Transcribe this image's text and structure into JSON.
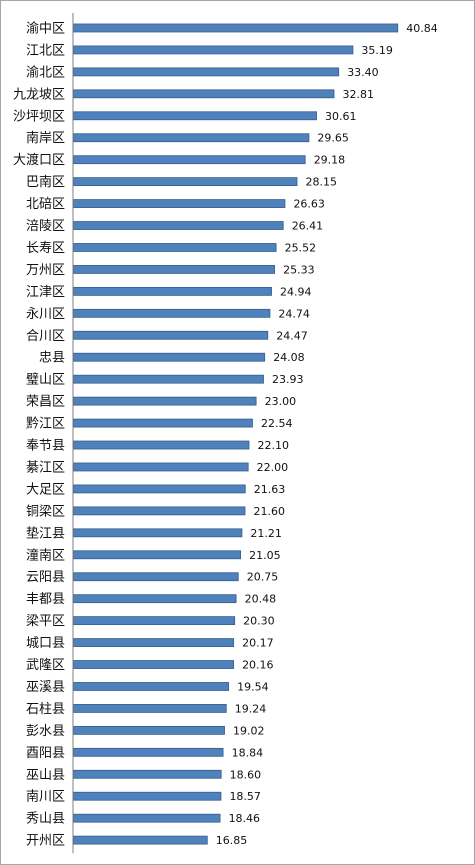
{
  "chart_data": {
    "type": "bar",
    "orientation": "horizontal",
    "title": "",
    "xlabel": "",
    "ylabel": "",
    "xlim": [
      0,
      50
    ],
    "grid": false,
    "legend": "none",
    "bar_color": "#4f81bd",
    "bar_edge_color": "#385d8a",
    "axis_color": "#7f7f7f",
    "categories": [
      "渝中区",
      "江北区",
      "渝北区",
      "九龙坡区",
      "沙坪坝区",
      "南岸区",
      "大渡口区",
      "巴南区",
      "北碚区",
      "涪陵区",
      "长寿区",
      "万州区",
      "江津区",
      "永川区",
      "合川区",
      "忠县",
      "璧山区",
      "荣昌区",
      "黔江区",
      "奉节县",
      "綦江区",
      "大足区",
      "铜梁区",
      "垫江县",
      "潼南区",
      "云阳县",
      "丰都县",
      "梁平区",
      "城口县",
      "武隆区",
      "巫溪县",
      "石柱县",
      "彭水县",
      "酉阳县",
      "巫山县",
      "南川区",
      "秀山县",
      "开州区"
    ],
    "values": [
      40.84,
      35.19,
      33.4,
      32.81,
      30.61,
      29.65,
      29.18,
      28.15,
      26.63,
      26.41,
      25.52,
      25.33,
      24.94,
      24.74,
      24.47,
      24.08,
      23.93,
      23.0,
      22.54,
      22.1,
      22.0,
      21.63,
      21.6,
      21.21,
      21.05,
      20.75,
      20.48,
      20.3,
      20.17,
      20.16,
      19.54,
      19.24,
      19.02,
      18.84,
      18.6,
      18.57,
      18.46,
      16.85
    ],
    "value_labels": [
      "40.84",
      "35.19",
      "33.40",
      "32.81",
      "30.61",
      "29.65",
      "29.18",
      "28.15",
      "26.63",
      "26.41",
      "25.52",
      "25.33",
      "24.94",
      "24.74",
      "24.47",
      "24.08",
      "23.93",
      "23.00",
      "22.54",
      "22.10",
      "22.00",
      "21.63",
      "21.60",
      "21.21",
      "21.05",
      "20.75",
      "20.48",
      "20.30",
      "20.17",
      "20.16",
      "19.54",
      "19.24",
      "19.02",
      "18.84",
      "18.60",
      "18.57",
      "18.46",
      "16.85"
    ]
  }
}
